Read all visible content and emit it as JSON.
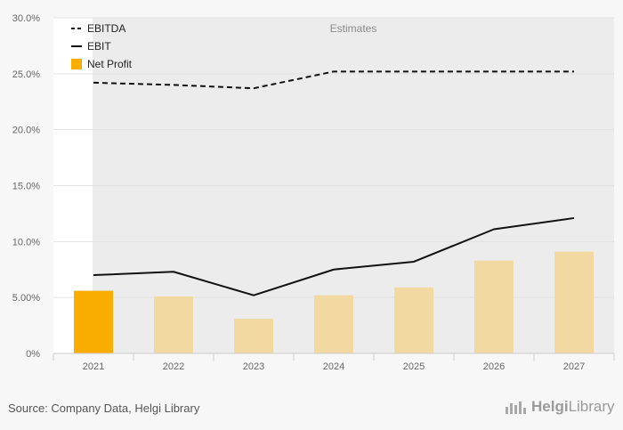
{
  "chart_data": {
    "type": "bar",
    "categories": [
      "2021",
      "2022",
      "2023",
      "2024",
      "2025",
      "2026",
      "2027"
    ],
    "series": [
      {
        "name": "EBITDA",
        "kind": "line",
        "style": "dashed",
        "color": "#111111",
        "values": [
          24.2,
          24.0,
          23.7,
          25.2,
          25.2,
          25.2,
          25.2
        ]
      },
      {
        "name": "EBIT",
        "kind": "line",
        "style": "solid",
        "color": "#111111",
        "values": [
          7.0,
          7.3,
          5.2,
          7.5,
          8.2,
          11.1,
          12.1
        ]
      },
      {
        "name": "Net Profit",
        "kind": "bar",
        "color": "#f9ad00",
        "estimate_color": "#f2d9a1",
        "values": [
          5.6,
          5.1,
          3.1,
          5.2,
          5.9,
          8.3,
          9.1
        ]
      }
    ],
    "estimate_start_index": 1,
    "annotation": "Estimates",
    "ylim": [
      0,
      30
    ],
    "y_ticks": [
      {
        "value": 0,
        "label": "0%"
      },
      {
        "value": 5,
        "label": "5.00%"
      },
      {
        "value": 10,
        "label": "10.0%"
      },
      {
        "value": 15,
        "label": "15.0%"
      },
      {
        "value": 20,
        "label": "20.0%"
      },
      {
        "value": 25,
        "label": "25.0%"
      },
      {
        "value": 30,
        "label": "30.0%"
      }
    ],
    "legend_position": "top-left",
    "grid": true,
    "xlabel": "",
    "ylabel": ""
  },
  "footer": {
    "source": "Source: Company Data, Helgi Library",
    "logo_word1": "Helgi",
    "logo_word2": "Library",
    "logo_icon": "bar-chart-icon"
  }
}
